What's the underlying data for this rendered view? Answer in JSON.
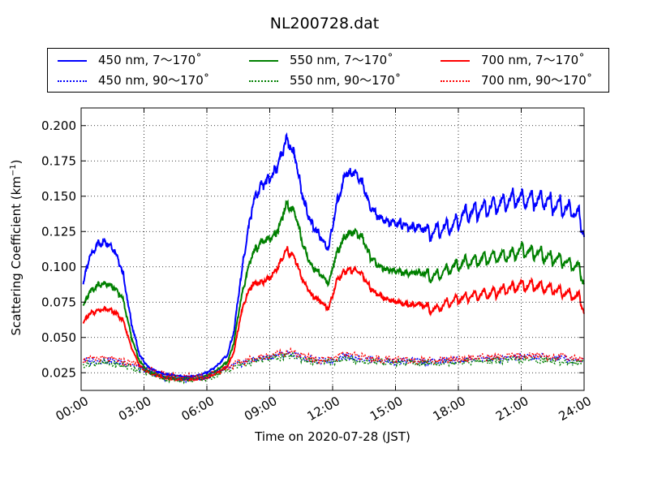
{
  "chart_data": {
    "type": "line",
    "title": "NL200728.dat",
    "xlabel": "Time on 2020-07-28 (JST)",
    "ylabel": "Scattering Coefficient (km",
    "ylabel_sup": "−1",
    "ylabel_end": ")",
    "xlim": [
      0,
      24
    ],
    "ylim": [
      0.0125,
      0.2125
    ],
    "xticks": [
      0,
      3,
      6,
      9,
      12,
      15,
      18,
      21,
      24
    ],
    "xtick_labels": [
      "00:00",
      "03:00",
      "06:00",
      "09:00",
      "12:00",
      "15:00",
      "18:00",
      "21:00",
      "24:00"
    ],
    "yticks": [
      0.025,
      0.05,
      0.075,
      0.1,
      0.125,
      0.15,
      0.175,
      0.2
    ],
    "ytick_labels": [
      "0.025",
      "0.050",
      "0.075",
      "0.100",
      "0.125",
      "0.150",
      "0.175",
      "0.200"
    ],
    "grid": true,
    "legend_placement": "top, above plot, 3 columns",
    "series": [
      {
        "name": "450 nm, 7～170˚",
        "color": "#0000ff",
        "style": "solid",
        "x": [
          0.1,
          0.4,
          0.8,
          1.2,
          1.6,
          2.0,
          2.4,
          2.8,
          3.2,
          3.6,
          4.0,
          4.5,
          5.0,
          5.5,
          6.0,
          6.5,
          7.0,
          7.3,
          7.6,
          7.9,
          8.2,
          8.6,
          9.0,
          9.4,
          9.8,
          10.2,
          10.6,
          11.0,
          11.4,
          11.8,
          12.2,
          12.6,
          13.0,
          13.4,
          13.8,
          14.2,
          14.6,
          15.0,
          15.4,
          15.8,
          16.2,
          16.6,
          17.0,
          17.4,
          17.8,
          18.2,
          18.6,
          19.0,
          19.4,
          19.8,
          20.2,
          20.6,
          21.0,
          21.4,
          21.8,
          22.2,
          22.6,
          23.0,
          23.4,
          23.8,
          24.0
        ],
        "y": [
          0.088,
          0.107,
          0.116,
          0.118,
          0.112,
          0.095,
          0.06,
          0.037,
          0.029,
          0.026,
          0.024,
          0.023,
          0.022,
          0.023,
          0.025,
          0.03,
          0.038,
          0.055,
          0.09,
          0.12,
          0.145,
          0.158,
          0.162,
          0.172,
          0.19,
          0.178,
          0.148,
          0.13,
          0.122,
          0.112,
          0.145,
          0.165,
          0.167,
          0.16,
          0.142,
          0.135,
          0.132,
          0.131,
          0.13,
          0.128,
          0.128,
          0.124,
          0.126,
          0.128,
          0.13,
          0.136,
          0.138,
          0.14,
          0.142,
          0.144,
          0.146,
          0.148,
          0.148,
          0.147,
          0.147,
          0.146,
          0.144,
          0.142,
          0.14,
          0.135,
          0.123
        ]
      },
      {
        "name": "550 nm, 7～170˚",
        "color": "#008000",
        "style": "solid",
        "x": [
          0.1,
          0.4,
          0.8,
          1.2,
          1.6,
          2.0,
          2.4,
          2.8,
          3.2,
          3.6,
          4.0,
          4.5,
          5.0,
          5.5,
          6.0,
          6.5,
          7.0,
          7.3,
          7.6,
          7.9,
          8.2,
          8.6,
          9.0,
          9.4,
          9.8,
          10.2,
          10.6,
          11.0,
          11.4,
          11.8,
          12.2,
          12.6,
          13.0,
          13.4,
          13.8,
          14.2,
          14.6,
          15.0,
          15.4,
          15.8,
          16.2,
          16.6,
          17.0,
          17.4,
          17.8,
          18.2,
          18.6,
          19.0,
          19.4,
          19.8,
          20.2,
          20.6,
          21.0,
          21.4,
          21.8,
          22.2,
          22.6,
          23.0,
          23.4,
          23.8,
          24.0
        ],
        "y": [
          0.072,
          0.082,
          0.087,
          0.088,
          0.085,
          0.077,
          0.05,
          0.033,
          0.026,
          0.024,
          0.022,
          0.021,
          0.021,
          0.021,
          0.023,
          0.027,
          0.033,
          0.047,
          0.075,
          0.095,
          0.11,
          0.117,
          0.12,
          0.126,
          0.145,
          0.138,
          0.115,
          0.1,
          0.095,
          0.088,
          0.11,
          0.122,
          0.125,
          0.121,
          0.107,
          0.1,
          0.098,
          0.097,
          0.096,
          0.096,
          0.096,
          0.093,
          0.094,
          0.097,
          0.1,
          0.103,
          0.104,
          0.105,
          0.106,
          0.107,
          0.108,
          0.109,
          0.112,
          0.11,
          0.11,
          0.107,
          0.106,
          0.104,
          0.102,
          0.098,
          0.088
        ]
      },
      {
        "name": "700 nm, 7～170˚",
        "color": "#ff0000",
        "style": "solid",
        "x": [
          0.1,
          0.4,
          0.8,
          1.2,
          1.6,
          2.0,
          2.4,
          2.8,
          3.2,
          3.6,
          4.0,
          4.5,
          5.0,
          5.5,
          6.0,
          6.5,
          7.0,
          7.3,
          7.6,
          7.9,
          8.2,
          8.6,
          9.0,
          9.4,
          9.8,
          10.2,
          10.6,
          11.0,
          11.4,
          11.8,
          12.2,
          12.6,
          13.0,
          13.4,
          13.8,
          14.2,
          14.6,
          15.0,
          15.4,
          15.8,
          16.2,
          16.6,
          17.0,
          17.4,
          17.8,
          18.2,
          18.6,
          19.0,
          19.4,
          19.8,
          20.2,
          20.6,
          21.0,
          21.4,
          21.8,
          22.2,
          22.6,
          23.0,
          23.4,
          23.8,
          24.0
        ],
        "y": [
          0.06,
          0.067,
          0.069,
          0.07,
          0.068,
          0.062,
          0.043,
          0.03,
          0.025,
          0.023,
          0.021,
          0.02,
          0.02,
          0.02,
          0.021,
          0.025,
          0.03,
          0.04,
          0.065,
          0.08,
          0.088,
          0.089,
          0.092,
          0.1,
          0.112,
          0.106,
          0.09,
          0.08,
          0.076,
          0.07,
          0.09,
          0.097,
          0.098,
          0.095,
          0.085,
          0.08,
          0.077,
          0.075,
          0.074,
          0.073,
          0.074,
          0.07,
          0.07,
          0.074,
          0.076,
          0.078,
          0.079,
          0.08,
          0.081,
          0.082,
          0.084,
          0.085,
          0.087,
          0.087,
          0.086,
          0.085,
          0.084,
          0.082,
          0.08,
          0.078,
          0.068
        ]
      },
      {
        "name": "450 nm, 90～170˚",
        "color": "#0000ff",
        "style": "dotted",
        "x": [
          0.1,
          0.8,
          1.6,
          2.4,
          3.2,
          4.0,
          5.0,
          6.0,
          6.5,
          7.0,
          7.5,
          8.0,
          8.5,
          9.0,
          9.5,
          10.0,
          10.5,
          11.0,
          11.5,
          12.0,
          12.5,
          13.0,
          13.5,
          14.0,
          15.0,
          16.0,
          17.0,
          18.0,
          19.0,
          20.0,
          21.0,
          22.0,
          23.0,
          24.0
        ],
        "y": [
          0.033,
          0.034,
          0.033,
          0.031,
          0.026,
          0.022,
          0.021,
          0.022,
          0.025,
          0.028,
          0.031,
          0.033,
          0.035,
          0.036,
          0.038,
          0.039,
          0.036,
          0.034,
          0.033,
          0.034,
          0.037,
          0.036,
          0.035,
          0.034,
          0.033,
          0.033,
          0.033,
          0.034,
          0.035,
          0.035,
          0.036,
          0.036,
          0.035,
          0.034
        ]
      },
      {
        "name": "550 nm, 90～170˚",
        "color": "#008000",
        "style": "dotted",
        "x": [
          0.1,
          0.8,
          1.6,
          2.4,
          3.2,
          4.0,
          5.0,
          6.0,
          6.5,
          7.0,
          7.5,
          8.0,
          8.5,
          9.0,
          9.5,
          10.0,
          10.5,
          11.0,
          11.5,
          12.0,
          12.5,
          13.0,
          13.5,
          14.0,
          15.0,
          16.0,
          17.0,
          18.0,
          19.0,
          20.0,
          21.0,
          22.0,
          23.0,
          24.0
        ],
        "y": [
          0.031,
          0.032,
          0.031,
          0.029,
          0.025,
          0.021,
          0.02,
          0.021,
          0.024,
          0.027,
          0.03,
          0.032,
          0.034,
          0.035,
          0.036,
          0.037,
          0.035,
          0.033,
          0.032,
          0.033,
          0.035,
          0.034,
          0.033,
          0.033,
          0.032,
          0.032,
          0.032,
          0.033,
          0.033,
          0.034,
          0.034,
          0.034,
          0.033,
          0.032
        ]
      },
      {
        "name": "700 nm, 90～170˚",
        "color": "#ff0000",
        "style": "dotted",
        "x": [
          0.1,
          0.8,
          1.6,
          2.4,
          3.2,
          4.0,
          5.0,
          6.0,
          6.5,
          7.0,
          7.5,
          8.0,
          8.5,
          9.0,
          9.5,
          10.0,
          10.5,
          11.0,
          11.5,
          12.0,
          12.5,
          13.0,
          13.5,
          14.0,
          15.0,
          16.0,
          17.0,
          18.0,
          19.0,
          20.0,
          21.0,
          22.0,
          23.0,
          24.0
        ],
        "y": [
          0.034,
          0.035,
          0.034,
          0.032,
          0.027,
          0.023,
          0.022,
          0.023,
          0.026,
          0.029,
          0.032,
          0.034,
          0.036,
          0.037,
          0.039,
          0.04,
          0.037,
          0.035,
          0.034,
          0.035,
          0.038,
          0.037,
          0.036,
          0.035,
          0.034,
          0.034,
          0.034,
          0.035,
          0.036,
          0.036,
          0.037,
          0.037,
          0.036,
          0.035
        ]
      }
    ]
  }
}
